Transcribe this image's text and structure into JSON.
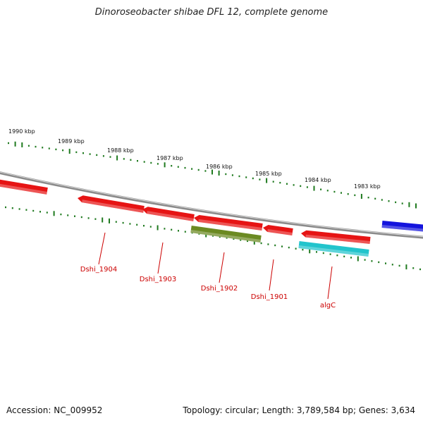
{
  "title": "Dinoroseobacter shibae DFL 12, complete genome",
  "footer": {
    "accession": "Accession: NC_009952",
    "summary": "Topology: circular; Length: 3,789,584 bp; Genes: 3,634"
  },
  "colors": {
    "tick": "#1f7a1f",
    "backbone": "#8a8a8a",
    "gene_label": "#cc0000",
    "gene_red": "#e61414",
    "gene_olive": "#6b8a22",
    "gene_cyan": "#22c4cc",
    "gene_blue": "#1414dd"
  },
  "scale_labels": [
    "1990 kbp",
    "1989 kbp",
    "1988 kbp",
    "1987 kbp",
    "1986 kbp",
    "1985 kbp",
    "1984 kbp",
    "1983 kbp"
  ],
  "gene_labels": [
    "Dshi_1904",
    "Dshi_1903",
    "Dshi_1902",
    "Dshi_1901",
    "algC"
  ]
}
